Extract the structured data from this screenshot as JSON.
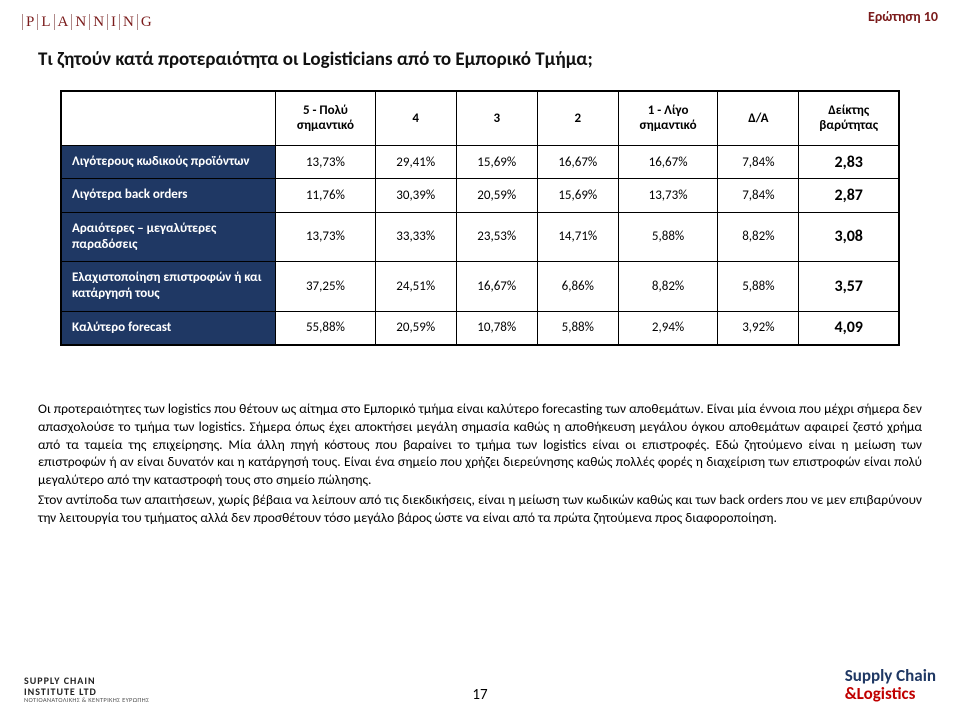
{
  "header": {
    "brand_letters": [
      "P",
      "L",
      "A",
      "N",
      "N",
      "I",
      "N",
      "G"
    ],
    "question_tag": "Ερώτηση 10"
  },
  "title": "Τι ζητούν κατά προτεραιότητα οι Logisticians από το Εμπορικό Τμήμα;",
  "table": {
    "headers": [
      "",
      "5 - Πολύ σημαντικό",
      "4",
      "3",
      "2",
      "1 - Λίγο σημαντικό",
      "Δ/Α",
      "Δείκτης βαρύτητας"
    ],
    "rows": [
      {
        "label": "Λιγότερους κωδικούς προϊόντων",
        "cells": [
          "13,73%",
          "29,41%",
          "15,69%",
          "16,67%",
          "16,67%",
          "7,84%"
        ],
        "index": "2,83"
      },
      {
        "label": "Λιγότερα back orders",
        "cells": [
          "11,76%",
          "30,39%",
          "20,59%",
          "15,69%",
          "13,73%",
          "7,84%"
        ],
        "index": "2,87"
      },
      {
        "label": "Αραιότερες – μεγαλύτερες παραδόσεις",
        "cells": [
          "13,73%",
          "33,33%",
          "23,53%",
          "14,71%",
          "5,88%",
          "8,82%"
        ],
        "index": "3,08"
      },
      {
        "label": "Ελαχιστοποίηση επιστροφών ή και κατάργησή τους",
        "cells": [
          "37,25%",
          "24,51%",
          "16,67%",
          "6,86%",
          "8,82%",
          "5,88%"
        ],
        "index": "3,57"
      },
      {
        "label": "Καλύτερο forecast",
        "cells": [
          "55,88%",
          "20,59%",
          "10,78%",
          "5,88%",
          "2,94%",
          "3,92%"
        ],
        "index": "4,09"
      }
    ],
    "row_label_bg": "#1f3864",
    "row_label_color": "#ffffff"
  },
  "body": {
    "p1": "Οι προτεραιότητες των logistics που θέτουν ως αίτημα στο Εμπορικό τμήμα είναι καλύτερο forecasting των αποθεμάτων. Είναι μία έννοια που μέχρι σήμερα δεν απασχολούσε το τμήμα των logistics. Σήμερα όπως έχει αποκτήσει μεγάλη σημασία καθώς η αποθήκευση μεγάλου όγκου αποθεμάτων αφαιρεί ζεστό χρήμα από τα ταμεία της επιχείρησης. Μία άλλη πηγή κόστους που βαραίνει το τμήμα των logistics είναι οι επιστροφές. Εδώ ζητούμενο είναι η μείωση των επιστροφών ή αν είναι δυνατόν και η κατάργησή τους. Είναι ένα σημείο που χρήζει διερεύνησης καθώς πολλές φορές η διαχείριση των επιστροφών είναι πολύ μεγαλύτερο από την καταστροφή τους στο σημείο πώλησης.",
    "p2": "Στον αντίποδα των απαιτήσεων, χωρίς βέβαια να λείπουν από τις διεκδικήσεις, είναι η μείωση των κωδικών καθώς και των back orders που νε μεν επιβαρύνουν την λειτουργία του τμήματος αλλά δεν προσθέτουν τόσο μεγάλο βάρος ώστε να είναι από τα πρώτα ζητούμενα προς διαφοροποίηση."
  },
  "page_number": "17",
  "footer": {
    "left_line1": "SUPPLY CHAIN",
    "left_line2": "INSTITUTE LTD",
    "left_line3": "ΝΟΤΙΟΑΝΑΤΟΛΙΚΗΣ & ΚΕΝΤΡΙΚΗΣ ΕΥΡΩΠΗΣ",
    "right_line1": "Supply Chain",
    "right_line2": "&Logistics"
  }
}
